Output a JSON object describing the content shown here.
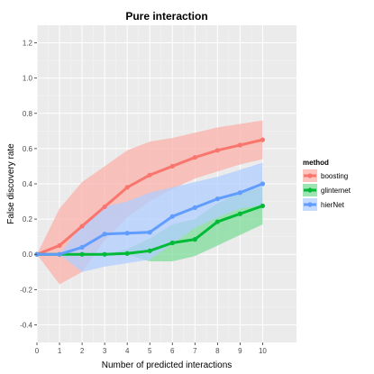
{
  "chart_data": {
    "type": "line",
    "title": "Pure interaction",
    "xlabel": "Number of predicted interactions",
    "ylabel": "False discovery rate",
    "xlim": [
      0,
      11.5
    ],
    "ylim": [
      -0.5,
      1.3
    ],
    "x_ticks": [
      "0",
      "1",
      "2",
      "3",
      "4",
      "5",
      "6",
      "7",
      "8",
      "9",
      "10"
    ],
    "y_ticks": [
      "-0.4",
      "-0.2",
      "0.0",
      "0.2",
      "0.4",
      "0.6",
      "0.8",
      "1.0",
      "1.2"
    ],
    "x": [
      0,
      1,
      2,
      3,
      4,
      5,
      6,
      7,
      8,
      9,
      10
    ],
    "grid": true,
    "legend": {
      "title": "method",
      "position": "right"
    },
    "series": [
      {
        "name": "boosting",
        "color": "#F8766D",
        "band_color": "#FBB2AB",
        "values": [
          0.0,
          0.05,
          0.16,
          0.27,
          0.38,
          0.45,
          0.5,
          0.55,
          0.59,
          0.62,
          0.65
        ],
        "lower": [
          0.0,
          -0.17,
          -0.1,
          0.08,
          0.21,
          0.3,
          0.37,
          0.43,
          0.47,
          0.51,
          0.54
        ],
        "upper": [
          0.0,
          0.26,
          0.41,
          0.5,
          0.59,
          0.64,
          0.66,
          0.69,
          0.72,
          0.74,
          0.76
        ]
      },
      {
        "name": "glinternet",
        "color": "#00BA38",
        "band_color": "#7FDC9B",
        "values": [
          0.0,
          0.0,
          0.0,
          0.0,
          0.005,
          0.02,
          0.065,
          0.085,
          0.185,
          0.23,
          0.275
        ],
        "lower": [
          0.0,
          0.0,
          0.0,
          0.0,
          0.0,
          -0.04,
          -0.04,
          -0.01,
          0.05,
          0.11,
          0.17
        ],
        "upper": [
          0.0,
          0.0,
          0.0,
          0.0,
          0.03,
          0.09,
          0.17,
          0.2,
          0.29,
          0.35,
          0.38
        ]
      },
      {
        "name": "hierNet",
        "color": "#619CFF",
        "band_color": "#B0CDFF",
        "values": [
          0.0,
          0.0,
          0.04,
          0.115,
          0.12,
          0.125,
          0.215,
          0.265,
          0.315,
          0.35,
          0.4
        ],
        "lower": [
          0.0,
          0.0,
          -0.1,
          -0.07,
          -0.05,
          -0.03,
          0.06,
          0.15,
          0.21,
          0.26,
          0.28
        ],
        "upper": [
          0.0,
          0.0,
          0.17,
          0.27,
          0.3,
          0.35,
          0.38,
          0.41,
          0.44,
          0.48,
          0.52
        ]
      }
    ]
  }
}
